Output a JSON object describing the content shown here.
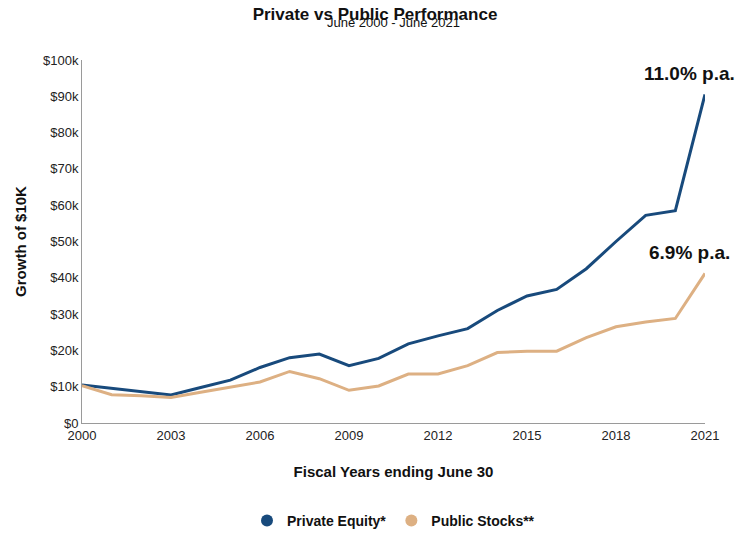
{
  "chart_data": {
    "type": "line",
    "title": "Private vs Public Performance",
    "subtitle": "June 2000 - June 2021",
    "x_label": "Fiscal Years ending June 30",
    "y_label": "Growth of $10K",
    "x": [
      2000,
      2001,
      2002,
      2003,
      2004,
      2005,
      2006,
      2007,
      2008,
      2009,
      2010,
      2011,
      2012,
      2013,
      2014,
      2015,
      2016,
      2017,
      2018,
      2019,
      2020,
      2021
    ],
    "series": [
      {
        "name": "Private Equity*",
        "color": "#184a7c",
        "annotation": "11.0% p.a.",
        "values": [
          10.5,
          9.5,
          8.7,
          7.7,
          9.8,
          11.8,
          15.3,
          18.0,
          19.0,
          15.8,
          17.8,
          21.8,
          24.0,
          26.0,
          31.0,
          35.0,
          36.8,
          42.5,
          50.0,
          57.2,
          58.5,
          90.5
        ]
      },
      {
        "name": "Public Stocks**",
        "color": "#ddb083",
        "annotation": "6.9% p.a.",
        "values": [
          10.3,
          7.8,
          7.5,
          7.0,
          8.5,
          10.0,
          11.3,
          14.2,
          12.2,
          9.0,
          10.2,
          13.5,
          13.5,
          15.8,
          19.4,
          19.8,
          19.8,
          23.5,
          26.5,
          27.8,
          28.8,
          41.2
        ]
      }
    ],
    "xlim": [
      2000,
      2021
    ],
    "xticks": [
      2000,
      2003,
      2006,
      2009,
      2012,
      2015,
      2018,
      2021
    ],
    "ylim": [
      0,
      100
    ],
    "yticks": [
      {
        "value": 0,
        "label": "$0"
      },
      {
        "value": 10,
        "label": "$10k"
      },
      {
        "value": 20,
        "label": "$20k"
      },
      {
        "value": 30,
        "label": "$30k"
      },
      {
        "value": 40,
        "label": "$40k"
      },
      {
        "value": 50,
        "label": "$50k"
      },
      {
        "value": 60,
        "label": "$60k"
      },
      {
        "value": 70,
        "label": "$70k"
      },
      {
        "value": 80,
        "label": "$80k"
      },
      {
        "value": 90,
        "label": "$90k"
      },
      {
        "value": 100,
        "label": "$100k"
      }
    ],
    "grid": false,
    "legend": "bottom"
  }
}
